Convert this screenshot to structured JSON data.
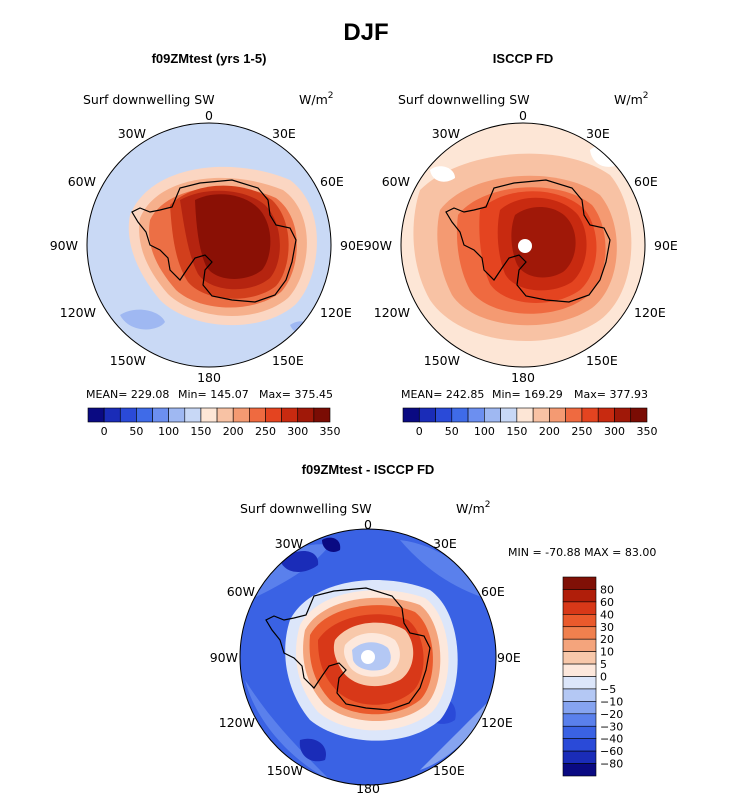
{
  "figure": {
    "title": "DJF",
    "field_label": "Surf downwelling SW",
    "units_base": "W/m",
    "units_exp": "2"
  },
  "lon_labels": [
    "0",
    "30E",
    "60E",
    "90E",
    "120E",
    "150E",
    "180",
    "150W",
    "120W",
    "90W",
    "60W",
    "30W"
  ],
  "colors": {
    "abs_scale": [
      "#0a0a82",
      "#1a2cb8",
      "#2a4ad8",
      "#3f6be8",
      "#6c8ff0",
      "#9fb8f2",
      "#c8d8f6",
      "#fde6d6",
      "#f8c2a4",
      "#f49a72",
      "#ef6a40",
      "#e44420",
      "#c82a10",
      "#a01808",
      "#7a0c04"
    ],
    "diff_scale": [
      "#0a0a82",
      "#1a2cb8",
      "#2a4ad8",
      "#3a62e4",
      "#5a80ec",
      "#86a4f0",
      "#b4c8f4",
      "#dce6fa",
      "#fde8dc",
      "#f8c8aa",
      "#f4a47c",
      "#f0804e",
      "#ea5a2c",
      "#d83818",
      "#b01e0a",
      "#801006"
    ]
  },
  "chart_data": [
    {
      "type": "heatmap",
      "title": "f09ZMtest (yrs 1-5)",
      "projection": "south-polar-stereographic",
      "stats": {
        "mean": "MEAN= 229.08",
        "min": "Min= 145.07",
        "max": "Max= 375.45"
      },
      "colorbar_ticks": [
        "0",
        "50",
        "100",
        "150",
        "200",
        "250",
        "300",
        "350"
      ],
      "range": [
        145.07,
        375.45
      ],
      "mean": 229.08
    },
    {
      "type": "heatmap",
      "title": "ISCCP FD",
      "projection": "south-polar-stereographic",
      "stats": {
        "mean": "MEAN= 242.85",
        "min": "Min= 169.29",
        "max": "Max= 377.93"
      },
      "colorbar_ticks": [
        "0",
        "50",
        "100",
        "150",
        "200",
        "250",
        "300",
        "350"
      ],
      "range": [
        169.29,
        377.93
      ],
      "mean": 242.85
    },
    {
      "type": "heatmap",
      "title": "f09ZMtest - ISCCP FD",
      "projection": "south-polar-stereographic",
      "stats": {
        "minmax": "MIN = -70.88 MAX =  83.00"
      },
      "colorbar_ticks": [
        "80",
        "60",
        "40",
        "30",
        "20",
        "10",
        "5",
        "0",
        "−5",
        "−10",
        "−20",
        "−30",
        "−40",
        "−60",
        "−80"
      ],
      "range": [
        -70.88,
        83.0
      ]
    }
  ]
}
